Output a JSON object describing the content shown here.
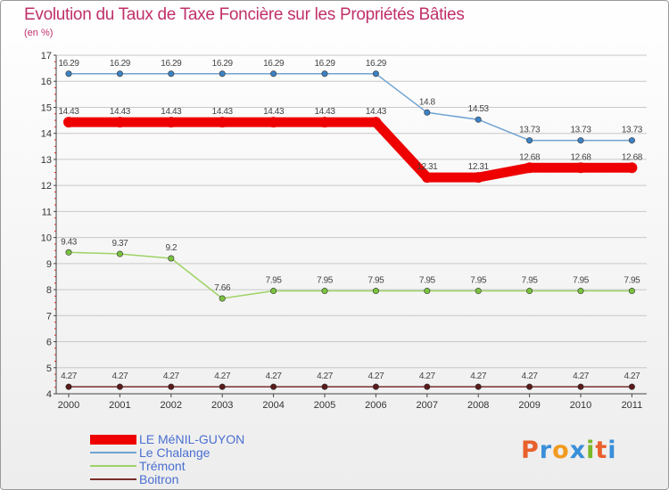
{
  "title": "Evolution du Taux de Taxe Foncière sur les Propriétés Bâties",
  "subtitle": "(en %)",
  "logo": {
    "text": "Proxiti",
    "letters": [
      "P",
      "r",
      "o",
      "x",
      "i",
      "t",
      "i"
    ]
  },
  "colors": {
    "title": "#c0306a",
    "legend_text": "#4a6fd0",
    "logo_letters": [
      "#e8602c",
      "#3a8fd8",
      "#f29a1f",
      "#3a8fd8",
      "#7ab82a",
      "#e8602c",
      "#3a8fd8"
    ]
  },
  "chart_data": {
    "type": "line",
    "title": "Evolution du Taux de Taxe Foncière sur les Propriétés Bâties",
    "ylabel": "(en %)",
    "xlabel": "",
    "ylim": [
      4,
      17
    ],
    "yticks": [
      4,
      5,
      6,
      7,
      8,
      9,
      10,
      11,
      12,
      13,
      14,
      15,
      16,
      17
    ],
    "categories": [
      "2000",
      "2001",
      "2002",
      "2003",
      "2004",
      "2005",
      "2006",
      "2007",
      "2008",
      "2009",
      "2010",
      "2011"
    ],
    "grid": "horizontal",
    "legend_position": "bottom-left",
    "series": [
      {
        "name": "LE MéNIL-GUYON",
        "color": "#ee0000",
        "marker": "#ee0000",
        "emphasis": true,
        "values": [
          14.43,
          14.43,
          14.43,
          14.43,
          14.43,
          14.43,
          14.43,
          12.31,
          12.31,
          12.68,
          12.68,
          12.68
        ],
        "labels": [
          "14.43",
          "14.43",
          "14.43",
          "14.43",
          "14.43",
          "14.43",
          "14.43",
          "12.31",
          "12.31",
          "12.68",
          "12.68",
          "12.68"
        ]
      },
      {
        "name": "Le Chalange",
        "color": "#6fa3d2",
        "marker": "#3c82c4",
        "emphasis": false,
        "values": [
          16.29,
          16.29,
          16.29,
          16.29,
          16.29,
          16.29,
          16.29,
          14.8,
          14.53,
          13.73,
          13.73,
          13.73
        ],
        "labels": [
          "16.29",
          "16.29",
          "16.29",
          "16.29",
          "16.29",
          "16.29",
          "16.29",
          "14.8",
          "14.53",
          "13.73",
          "13.73",
          "13.73"
        ]
      },
      {
        "name": "Trémont",
        "color": "#9fd266",
        "marker": "#7ac23f",
        "emphasis": false,
        "values": [
          9.43,
          9.37,
          9.2,
          7.66,
          7.95,
          7.95,
          7.95,
          7.95,
          7.95,
          7.95,
          7.95,
          7.95
        ],
        "labels": [
          "9.43",
          "9.37",
          "9.2",
          "7.66",
          "7.95",
          "7.95",
          "7.95",
          "7.95",
          "7.95",
          "7.95",
          "7.95",
          "7.95"
        ]
      },
      {
        "name": "Boitron",
        "color": "#7a2e2e",
        "marker": "#5a1a1a",
        "emphasis": false,
        "values": [
          4.27,
          4.27,
          4.27,
          4.27,
          4.27,
          4.27,
          4.27,
          4.27,
          4.27,
          4.27,
          4.27,
          4.27
        ],
        "labels": [
          "4.27",
          "4.27",
          "4.27",
          "4.27",
          "4.27",
          "4.27",
          "4.27",
          "4.27",
          "4.27",
          "4.27",
          "4.27",
          "4.27"
        ]
      }
    ]
  }
}
